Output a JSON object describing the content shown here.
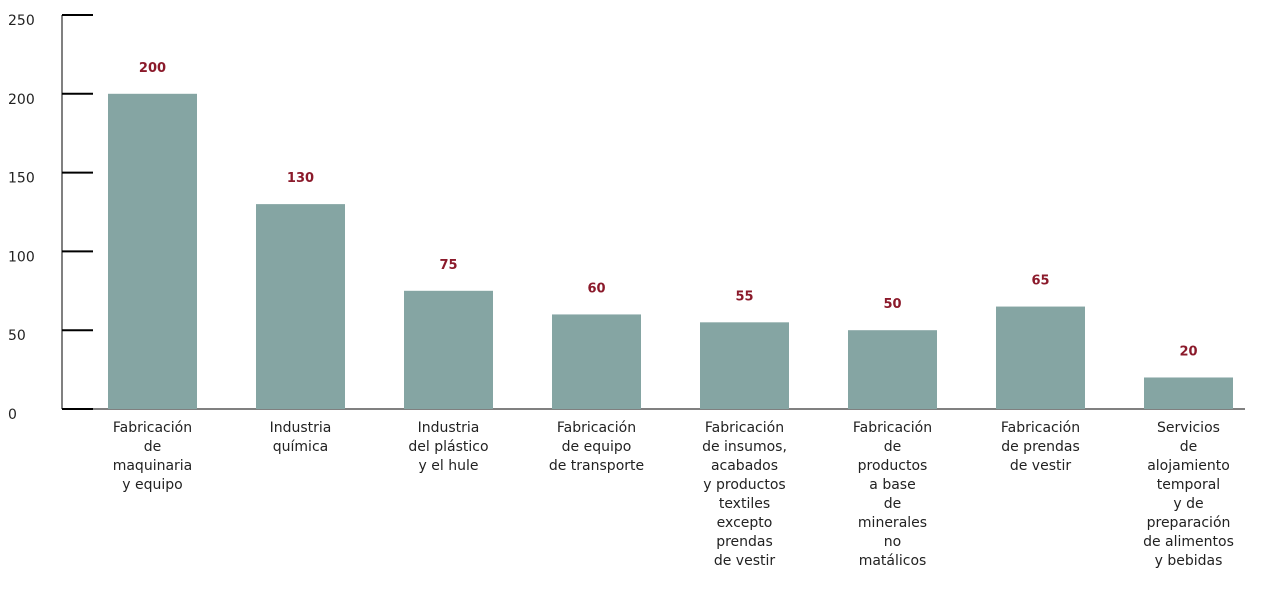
{
  "chart_data": {
    "type": "bar",
    "categories": [
      [
        "Fabricación",
        "de",
        "maquinaria",
        "y equipo"
      ],
      [
        "Industria",
        "química"
      ],
      [
        "Industria",
        "del plástico",
        "y el hule"
      ],
      [
        "Fabricación",
        "de equipo",
        "de transporte"
      ],
      [
        "Fabricación",
        "de insumos,",
        "acabados",
        "y productos",
        "textiles",
        "excepto",
        "prendas",
        "de vestir"
      ],
      [
        "Fabricación",
        "de",
        "productos",
        "a base",
        "de",
        "minerales",
        "no",
        "matálicos"
      ],
      [
        "Fabricación",
        "de prendas",
        "de vestir"
      ],
      [
        "Servicios",
        "de",
        "alojamiento",
        "temporal",
        "y de",
        "preparación",
        "de alimentos",
        "y bebidas"
      ]
    ],
    "values": [
      200,
      130,
      75,
      60,
      55,
      50,
      65,
      20
    ],
    "color": "#85a5a3",
    "label_color": "#8b1a2b",
    "ylim": [
      0,
      250
    ],
    "yticks": [
      0,
      50,
      100,
      150,
      200,
      250
    ]
  }
}
